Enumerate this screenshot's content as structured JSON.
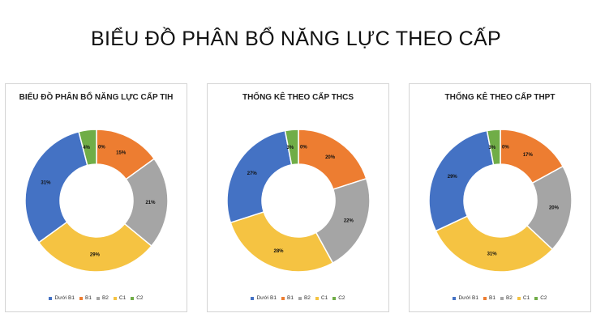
{
  "page": {
    "title": "BIỂU ĐỒ PHÂN BỔ NĂNG LỰC THEO CẤP"
  },
  "colors": {
    "Dưới B1": "#4472c4",
    "B1": "#ed7d31",
    "B2": "#a5a5a5",
    "C1": "#f5c342",
    "C2": "#4472c4",
    "C2_slice": "#70ad47"
  },
  "chart_data": [
    {
      "type": "pie",
      "title": "BIỂU ĐỒ PHÂN BỔ NĂNG LỰC CẤP TIH",
      "categories": [
        "B1",
        "B2",
        "C1",
        "Dưới B1",
        "C1",
        "C2"
      ],
      "slices": [
        {
          "name": "B1",
          "value": 15,
          "label": "15%"
        },
        {
          "name": "B2",
          "value": 21,
          "label": "21%"
        },
        {
          "name": "C1",
          "value": 29,
          "label": "29%"
        },
        {
          "name": "Dưới B1",
          "value": 31,
          "label": "31%"
        },
        {
          "name": "C1",
          "value": 4,
          "label": "4%"
        },
        {
          "name": "C2",
          "value": 0,
          "label": "0%"
        }
      ],
      "legend": [
        "Dưới B1",
        "B1",
        "B2",
        "C1",
        "C2"
      ],
      "legend_position": "bottom"
    },
    {
      "type": "pie",
      "title": "THỐNG KÊ THEO CẤP THCS",
      "slices": [
        {
          "name": "B1",
          "value": 20,
          "label": "20%"
        },
        {
          "name": "B2",
          "value": 22,
          "label": "22%"
        },
        {
          "name": "C1",
          "value": 28,
          "label": "28%"
        },
        {
          "name": "Dưới B1",
          "value": 27,
          "label": "27%"
        },
        {
          "name": "C1",
          "value": 3,
          "label": "3%"
        },
        {
          "name": "C2",
          "value": 0,
          "label": "0%"
        }
      ],
      "legend": [
        "Dưới B1",
        "B1",
        "B2",
        "C1",
        "C2"
      ],
      "legend_position": "bottom"
    },
    {
      "type": "pie",
      "title": "THỐNG KÊ THEO CẤP THPT",
      "slices": [
        {
          "name": "B1",
          "value": 17,
          "label": "17%"
        },
        {
          "name": "B2",
          "value": 20,
          "label": "20%"
        },
        {
          "name": "C1",
          "value": 31,
          "label": "31%"
        },
        {
          "name": "Dưới B1",
          "value": 29,
          "label": "29%"
        },
        {
          "name": "C1",
          "value": 3,
          "label": "3%"
        },
        {
          "name": "C2",
          "value": 0,
          "label": "0%"
        }
      ],
      "legend": [
        "Dưới B1",
        "B1",
        "B2",
        "C1",
        "C2"
      ],
      "legend_position": "bottom"
    }
  ]
}
